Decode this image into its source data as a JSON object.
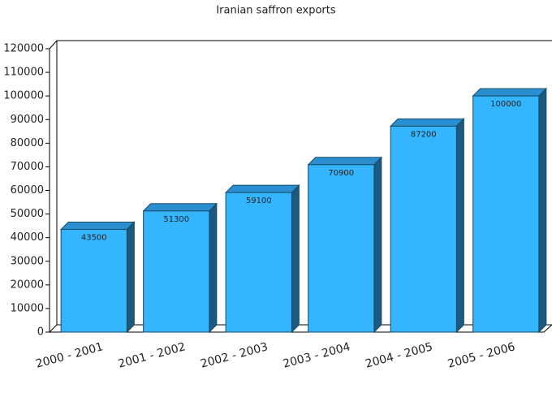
{
  "chart_data": {
    "type": "bar",
    "title": "Iranian saffron exports",
    "categories": [
      "2000 - 2001",
      "2001 - 2002",
      "2002 - 2003",
      "2003 - 2004",
      "2004 - 2005",
      "2005 - 2006"
    ],
    "values": [
      43500,
      51300,
      59100,
      70900,
      87200,
      100000
    ],
    "color": "#33b5ff",
    "ylim": [
      0,
      120000
    ],
    "yticks": [
      0,
      10000,
      20000,
      30000,
      40000,
      50000,
      60000,
      70000,
      80000,
      90000,
      100000,
      110000,
      120000
    ]
  }
}
